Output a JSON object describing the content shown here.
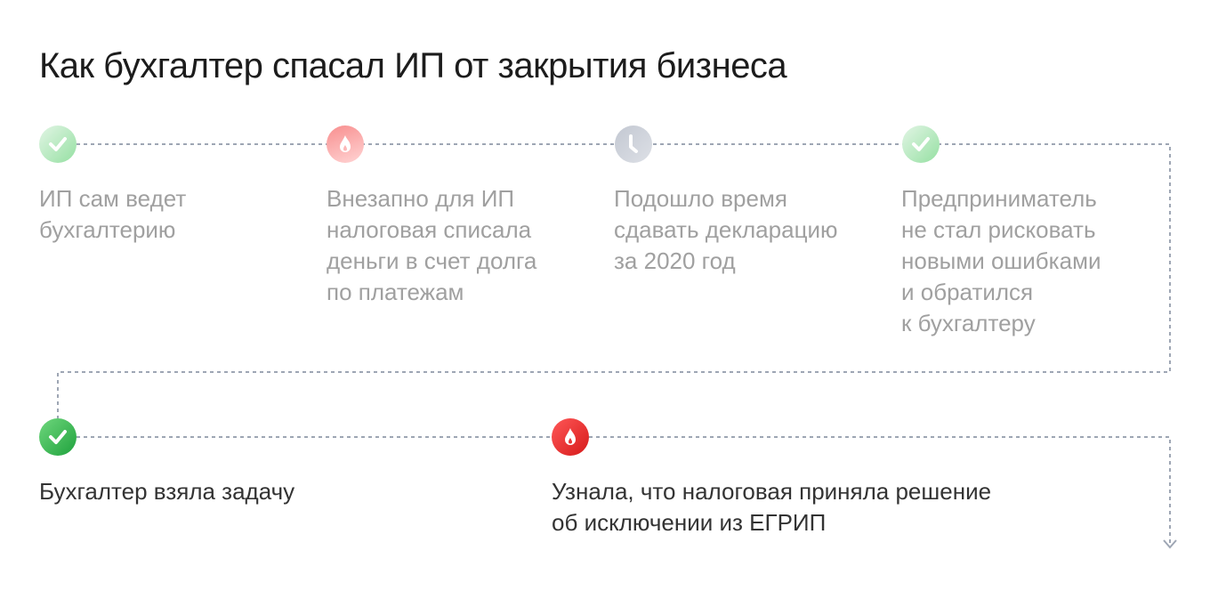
{
  "title": "Как бухгалтер спасал ИП от закрытия бизнеса",
  "steps": [
    {
      "icon": "check-icon",
      "state": "past",
      "text": "ИП сам ведет\nбухгалтерию"
    },
    {
      "icon": "fire-icon",
      "state": "past",
      "text": "Внезапно для ИП\nналоговая списала\nденьги в счет долга\nпо платежам"
    },
    {
      "icon": "clock-icon",
      "state": "past",
      "text": "Подошло время\nсдавать декларацию\nза 2020 год"
    },
    {
      "icon": "check-icon",
      "state": "past",
      "text": "Предприниматель\nне стал рисковать\nновыми ошибками\nи обратился\nк бухгалтеру"
    },
    {
      "icon": "check-icon",
      "state": "current",
      "text": "Бухгалтер взяла задачу"
    },
    {
      "icon": "fire-icon",
      "state": "current",
      "text": "Узнала, что налоговая приняла решение\nоб исключении из ЕГРИП"
    }
  ],
  "colors": {
    "line": "#9ea6b4",
    "text_past": "#a0a0a0",
    "text_current": "#333333",
    "green": "#2fb14a",
    "red": "#e52222",
    "grey": "#c5cad3"
  }
}
